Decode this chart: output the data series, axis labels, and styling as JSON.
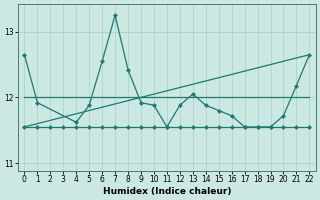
{
  "xlabel": "Humidex (Indice chaleur)",
  "background_color": "#cce8e2",
  "grid_color": "#aaceca",
  "line_color": "#1e7a6e",
  "xlim": [
    -0.5,
    22.5
  ],
  "ylim": [
    10.88,
    13.42
  ],
  "yticks": [
    11,
    12,
    13
  ],
  "xticks": [
    0,
    1,
    2,
    3,
    4,
    5,
    6,
    7,
    8,
    9,
    10,
    11,
    12,
    13,
    14,
    15,
    16,
    17,
    18,
    19,
    20,
    21,
    22
  ],
  "line_spiky_x": [
    0,
    1,
    4,
    5,
    6,
    7,
    8,
    9,
    10,
    11,
    12,
    13,
    14,
    15,
    16,
    17,
    18,
    19,
    20,
    21,
    22
  ],
  "line_spiky_y": [
    12.65,
    11.92,
    11.62,
    11.88,
    12.55,
    13.25,
    12.42,
    11.92,
    11.88,
    11.55,
    11.88,
    12.05,
    11.88,
    11.8,
    11.72,
    11.55,
    11.55,
    11.55,
    11.72,
    12.18,
    12.65
  ],
  "line_trend_x": [
    0,
    22
  ],
  "line_trend_y": [
    11.55,
    12.65
  ],
  "line_mid_x": [
    0,
    1,
    2,
    3,
    4,
    5,
    6,
    7,
    8,
    9,
    10,
    11,
    12,
    13,
    14,
    15,
    16,
    17,
    18,
    19,
    20,
    21,
    22
  ],
  "line_mid_y": [
    12.0,
    12.0,
    12.0,
    12.0,
    12.0,
    12.0,
    12.0,
    12.0,
    12.0,
    12.0,
    12.0,
    12.0,
    12.0,
    12.0,
    12.0,
    12.0,
    12.0,
    12.0,
    12.0,
    12.0,
    12.0,
    12.0,
    12.0
  ],
  "line_flat_x": [
    0,
    1,
    2,
    3,
    4,
    5,
    6,
    7,
    8,
    9,
    10,
    11,
    12,
    13,
    14,
    15,
    16,
    17,
    18,
    19,
    20,
    21,
    22
  ],
  "line_flat_y": [
    11.55,
    11.55,
    11.55,
    11.55,
    11.55,
    11.55,
    11.55,
    11.55,
    11.55,
    11.55,
    11.55,
    11.55,
    11.55,
    11.55,
    11.55,
    11.55,
    11.55,
    11.55,
    11.55,
    11.55,
    11.55,
    11.55,
    11.55
  ]
}
